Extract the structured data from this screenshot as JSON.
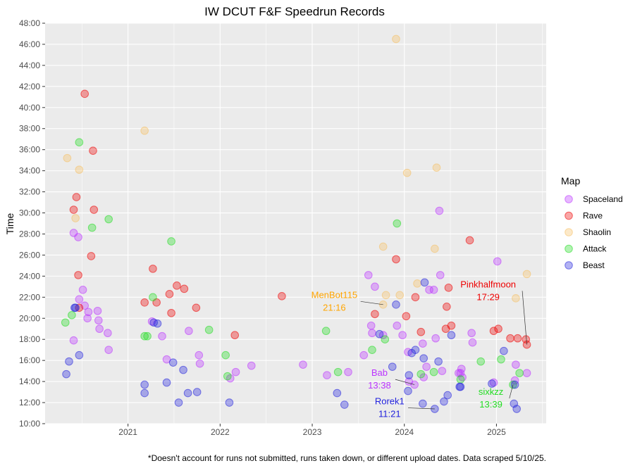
{
  "chart_data": {
    "type": "scatter",
    "title": "IW DCUT F&F Speedrun Records",
    "xlabel": "",
    "ylabel": "Time",
    "caption": "*Doesn't account for runs not submitted, runs taken down, or different upload dates. Data scraped 5/10/25.",
    "xlim": [
      2020.1,
      2025.54
    ],
    "ylim": [
      10,
      48
    ],
    "x_ticks": [
      2021,
      2022,
      2023,
      2024,
      2025
    ],
    "x_tick_labels": [
      "2021",
      "2022",
      "2023",
      "2024",
      "2025"
    ],
    "y_ticks": [
      10,
      12,
      14,
      16,
      18,
      20,
      22,
      24,
      26,
      28,
      30,
      32,
      34,
      36,
      38,
      40,
      42,
      44,
      46,
      48
    ],
    "y_tick_labels": [
      "10:00",
      "12:00",
      "14:00",
      "16:00",
      "18:00",
      "20:00",
      "22:00",
      "24:00",
      "26:00",
      "28:00",
      "30:00",
      "32:00",
      "34:00",
      "36:00",
      "38:00",
      "40:00",
      "42:00",
      "44:00",
      "46:00",
      "48:00"
    ],
    "legend": {
      "title": "Map",
      "position": "right"
    },
    "series": [
      {
        "name": "Spaceland",
        "color": "#bb33ff",
        "points": [
          [
            2020.41,
            17.9
          ],
          [
            2020.41,
            28.1
          ],
          [
            2020.46,
            27.7
          ],
          [
            2020.47,
            21.8
          ],
          [
            2020.51,
            22.7
          ],
          [
            2020.53,
            21.2
          ],
          [
            2020.56,
            20.0
          ],
          [
            2020.57,
            20.6
          ],
          [
            2020.67,
            20.7
          ],
          [
            2020.68,
            19.8
          ],
          [
            2020.69,
            19.0
          ],
          [
            2020.78,
            18.6
          ],
          [
            2020.79,
            17.0
          ],
          [
            2021.26,
            19.7
          ],
          [
            2021.37,
            18.3
          ],
          [
            2021.42,
            16.1
          ],
          [
            2021.66,
            18.8
          ],
          [
            2021.77,
            16.5
          ],
          [
            2021.78,
            15.7
          ],
          [
            2022.11,
            14.3
          ],
          [
            2022.17,
            14.9
          ],
          [
            2022.34,
            15.5
          ],
          [
            2022.9,
            15.6
          ],
          [
            2023.16,
            14.6
          ],
          [
            2023.39,
            14.9
          ],
          [
            2023.56,
            16.5
          ],
          [
            2023.61,
            24.1
          ],
          [
            2023.64,
            19.3
          ],
          [
            2023.65,
            18.6
          ],
          [
            2023.68,
            23.0
          ],
          [
            2023.77,
            18.4
          ],
          [
            2023.92,
            19.3
          ],
          [
            2023.98,
            18.4
          ],
          [
            2024.04,
            16.8
          ],
          [
            2024.05,
            14.0
          ],
          [
            2024.11,
            13.7
          ],
          [
            2024.2,
            17.6
          ],
          [
            2024.21,
            14.4
          ],
          [
            2024.24,
            15.4
          ],
          [
            2024.27,
            22.7
          ],
          [
            2024.32,
            22.7
          ],
          [
            2024.34,
            18.1
          ],
          [
            2024.38,
            30.2
          ],
          [
            2024.39,
            24.1
          ],
          [
            2024.41,
            15.0
          ],
          [
            2024.59,
            14.8
          ],
          [
            2024.61,
            14.8
          ],
          [
            2024.62,
            15.2
          ],
          [
            2024.63,
            14.4
          ],
          [
            2024.73,
            18.6
          ],
          [
            2024.74,
            17.7
          ],
          [
            2024.97,
            13.9
          ],
          [
            2025.01,
            25.4
          ],
          [
            2025.2,
            14.1
          ],
          [
            2025.21,
            15.6
          ],
          [
            2025.33,
            14.8
          ]
        ]
      },
      {
        "name": "Rave",
        "color": "#ee0000",
        "points": [
          [
            2020.41,
            30.3
          ],
          [
            2020.44,
            31.5
          ],
          [
            2020.46,
            24.1
          ],
          [
            2020.47,
            21.0
          ],
          [
            2020.53,
            41.3
          ],
          [
            2020.6,
            25.9
          ],
          [
            2020.62,
            35.9
          ],
          [
            2020.63,
            30.3
          ],
          [
            2021.18,
            21.5
          ],
          [
            2021.27,
            24.7
          ],
          [
            2021.31,
            21.5
          ],
          [
            2021.45,
            22.3
          ],
          [
            2021.47,
            20.5
          ],
          [
            2021.53,
            23.1
          ],
          [
            2021.61,
            22.8
          ],
          [
            2021.74,
            21.0
          ],
          [
            2022.16,
            18.4
          ],
          [
            2022.67,
            22.1
          ],
          [
            2023.68,
            20.4
          ],
          [
            2023.91,
            25.6
          ],
          [
            2024.02,
            20.2
          ],
          [
            2024.12,
            22.0
          ],
          [
            2024.18,
            18.7
          ],
          [
            2024.45,
            19.0
          ],
          [
            2024.46,
            21.1
          ],
          [
            2024.48,
            22.9
          ],
          [
            2024.51,
            19.3
          ],
          [
            2024.71,
            27.4
          ],
          [
            2024.97,
            18.8
          ],
          [
            2025.02,
            19.0
          ],
          [
            2025.15,
            18.1
          ],
          [
            2025.23,
            18.1
          ],
          [
            2025.32,
            18.0
          ],
          [
            2025.33,
            17.5
          ]
        ]
      },
      {
        "name": "Shaolin",
        "color": "#f5c063",
        "points": [
          [
            2020.34,
            35.2
          ],
          [
            2020.43,
            29.5
          ],
          [
            2020.47,
            34.1
          ],
          [
            2021.18,
            37.8
          ],
          [
            2023.77,
            26.8
          ],
          [
            2023.77,
            21.3
          ],
          [
            2023.8,
            22.2
          ],
          [
            2023.91,
            46.5
          ],
          [
            2023.95,
            22.2
          ],
          [
            2024.03,
            33.8
          ],
          [
            2024.14,
            23.3
          ],
          [
            2024.33,
            26.6
          ],
          [
            2024.35,
            34.3
          ],
          [
            2025.21,
            21.9
          ],
          [
            2025.33,
            24.2
          ]
        ]
      },
      {
        "name": "Attack",
        "color": "#22dd22",
        "points": [
          [
            2020.32,
            19.6
          ],
          [
            2020.39,
            20.3
          ],
          [
            2020.47,
            36.7
          ],
          [
            2020.61,
            28.6
          ],
          [
            2020.79,
            29.4
          ],
          [
            2021.18,
            18.3
          ],
          [
            2021.21,
            18.3
          ],
          [
            2021.27,
            22.0
          ],
          [
            2021.47,
            27.3
          ],
          [
            2021.88,
            18.9
          ],
          [
            2022.06,
            16.5
          ],
          [
            2022.08,
            14.5
          ],
          [
            2023.15,
            18.8
          ],
          [
            2023.28,
            14.9
          ],
          [
            2023.65,
            17.0
          ],
          [
            2023.79,
            18.0
          ],
          [
            2023.92,
            29.0
          ],
          [
            2024.18,
            14.7
          ],
          [
            2024.32,
            14.9
          ],
          [
            2024.61,
            14.2
          ],
          [
            2024.83,
            15.9
          ],
          [
            2025.05,
            16.1
          ],
          [
            2025.18,
            13.7
          ],
          [
            2025.25,
            14.8
          ]
        ]
      },
      {
        "name": "Beast",
        "color": "#2222dd",
        "points": [
          [
            2020.33,
            14.7
          ],
          [
            2020.36,
            15.9
          ],
          [
            2020.42,
            21.0
          ],
          [
            2020.43,
            21.0
          ],
          [
            2020.47,
            16.5
          ],
          [
            2021.18,
            13.7
          ],
          [
            2021.18,
            12.9
          ],
          [
            2021.28,
            19.6
          ],
          [
            2021.32,
            19.5
          ],
          [
            2021.42,
            13.9
          ],
          [
            2021.49,
            15.8
          ],
          [
            2021.55,
            12.0
          ],
          [
            2021.6,
            15.1
          ],
          [
            2021.65,
            12.9
          ],
          [
            2021.75,
            13.0
          ],
          [
            2022.1,
            12.0
          ],
          [
            2023.27,
            12.9
          ],
          [
            2023.35,
            11.8
          ],
          [
            2023.73,
            18.5
          ],
          [
            2023.87,
            15.4
          ],
          [
            2023.91,
            21.3
          ],
          [
            2024.04,
            13.1
          ],
          [
            2024.05,
            14.6
          ],
          [
            2024.08,
            16.7
          ],
          [
            2024.12,
            17.0
          ],
          [
            2024.2,
            11.9
          ],
          [
            2024.21,
            16.2
          ],
          [
            2024.22,
            23.4
          ],
          [
            2024.33,
            11.4
          ],
          [
            2024.37,
            15.9
          ],
          [
            2024.43,
            12.1
          ],
          [
            2024.47,
            12.7
          ],
          [
            2024.51,
            18.4
          ],
          [
            2024.6,
            13.5
          ],
          [
            2024.61,
            13.5
          ],
          [
            2024.95,
            13.8
          ],
          [
            2025.08,
            16.9
          ],
          [
            2025.19,
            11.9
          ],
          [
            2025.2,
            13.7
          ],
          [
            2025.22,
            11.4
          ]
        ]
      }
    ],
    "annotations": [
      {
        "name": "MenBot115",
        "time": "21:16",
        "color": "#ffa500",
        "point": [
          2023.77,
          21.3
        ],
        "text_at": [
          2023.24,
          21.6
        ]
      },
      {
        "name": "Pinkhalfmoon",
        "time": "17:29",
        "color": "#ee0000",
        "point": [
          2025.33,
          17.5
        ],
        "text_at": [
          2024.91,
          22.6
        ]
      },
      {
        "name": "Bab",
        "time": "13:38",
        "color": "#bb33ff",
        "point": [
          2024.11,
          13.7
        ],
        "text_at": [
          2023.73,
          14.2
        ]
      },
      {
        "name": "sixkzz",
        "time": "13:39",
        "color": "#22dd22",
        "point": [
          2025.18,
          13.7
        ],
        "text_at": [
          2024.94,
          12.4
        ]
      },
      {
        "name": "Rorek1",
        "time": "11:21",
        "color": "#2222dd",
        "point": [
          2024.33,
          11.4
        ],
        "text_at": [
          2023.84,
          11.5
        ]
      }
    ]
  }
}
